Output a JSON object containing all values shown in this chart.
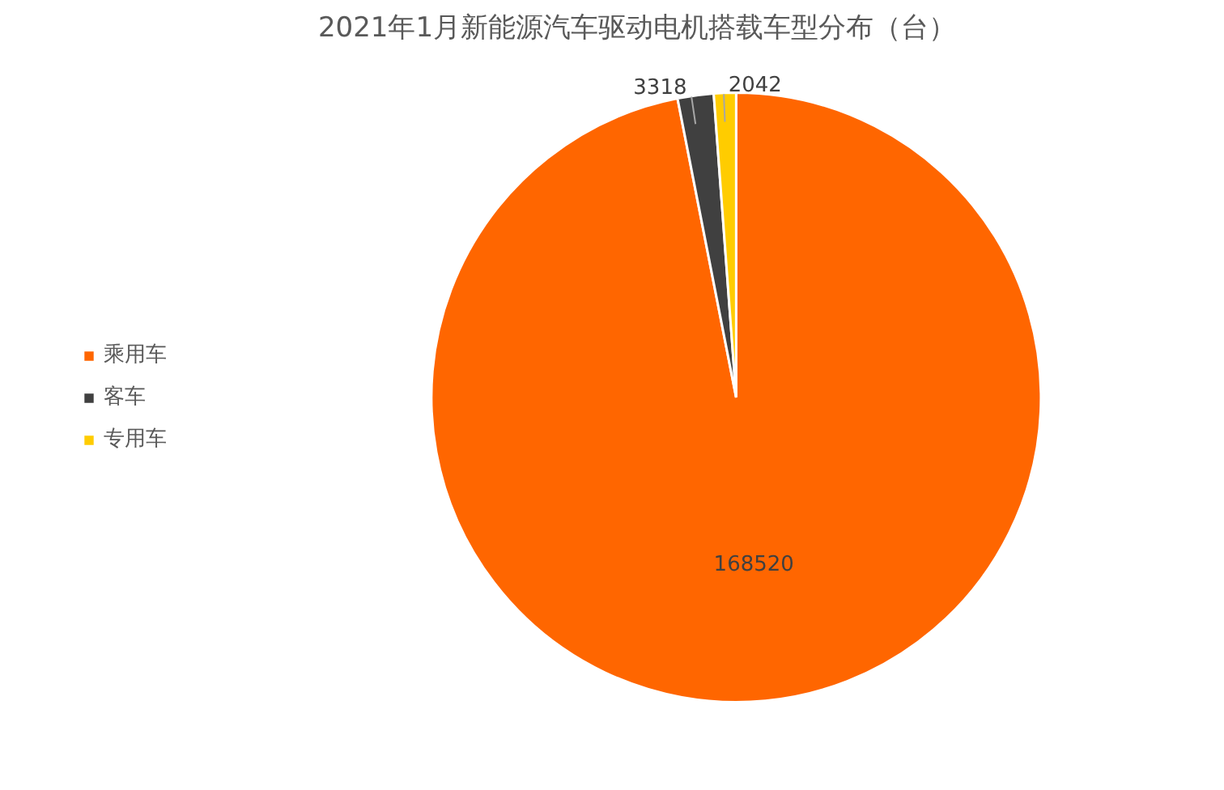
{
  "chart_data": {
    "type": "pie",
    "title": "2021年1月新能源汽车驱动电机搭载车型分布（台）",
    "categories": [
      "乘用车",
      "客车",
      "专用车"
    ],
    "values": [
      168520,
      3318,
      2042
    ],
    "colors": [
      "#ff6600",
      "#404040",
      "#ffcc00"
    ],
    "data_labels": true,
    "legend": "left"
  }
}
